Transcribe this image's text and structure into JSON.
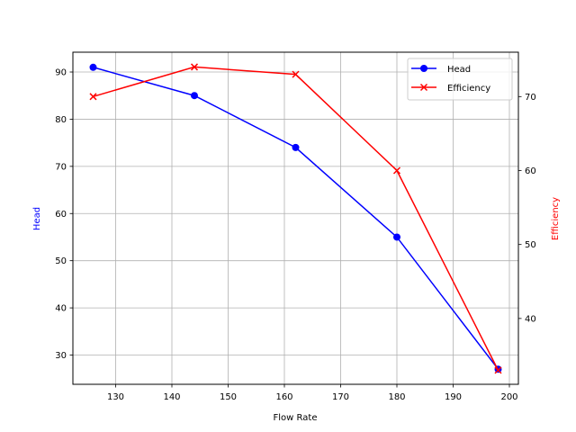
{
  "chart_data": {
    "type": "line",
    "title": "",
    "xlabel": "Flow Rate",
    "ylabel": "Head",
    "ylabel_right": "Efficiency",
    "x": [
      126,
      144,
      162,
      180,
      198
    ],
    "series": [
      {
        "name": "Head",
        "axis": "left",
        "color": "#0000ff",
        "marker": "circle",
        "values": [
          91,
          85,
          74,
          55,
          27
        ]
      },
      {
        "name": "Efficiency",
        "axis": "right",
        "color": "#ff0000",
        "marker": "x",
        "values": [
          70,
          74,
          73,
          60,
          33
        ]
      }
    ],
    "xlim": [
      122.4,
      201.6
    ],
    "ylim": [
      23.8,
      94.2
    ],
    "ylim_right": [
      31.1,
      76.0
    ],
    "xticks": [
      "130",
      "140",
      "150",
      "160",
      "170",
      "180",
      "190",
      "200"
    ],
    "yticks": [
      "30",
      "40",
      "50",
      "60",
      "70",
      "80",
      "90"
    ],
    "yticks_right": [
      "40",
      "50",
      "60",
      "70"
    ],
    "grid": true,
    "legend_position": "upper right"
  },
  "labels": {
    "xlabel": "Flow Rate",
    "ylabel_left": "Head",
    "ylabel_right": "Efficiency",
    "legend_head": "Head",
    "legend_efficiency": "Efficiency"
  },
  "colors": {
    "head": "#0000ff",
    "efficiency": "#ff0000",
    "grid": "#b0b0b0"
  }
}
